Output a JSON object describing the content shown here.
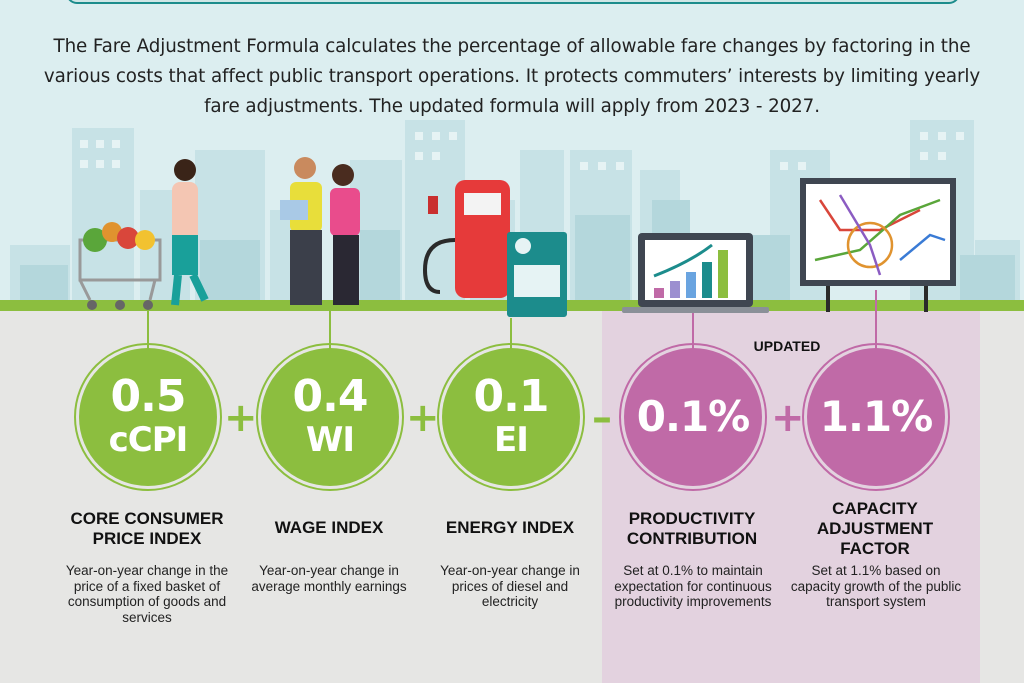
{
  "intro_text": "The Fare Adjustment Formula calculates the percentage of allowable fare changes by factoring in the various costs that affect public transport operations. It protects commuters’ interests by limiting yearly fare adjustments. The updated formula will apply from 2023 - 2027.",
  "updated_label": "UPDATED",
  "colors": {
    "green": "#8cbe3f",
    "pink": "#c06aa7",
    "updated_panel": "#e3d2df",
    "sky": "#dceef0"
  },
  "operators": [
    "+",
    "+",
    "–",
    "+"
  ],
  "components": [
    {
      "value": "0.5",
      "abbr": "cCPI",
      "title": "CORE CONSUMER PRICE INDEX",
      "description": "Year-on-year change in the price of a fixed basket of consumption of goods and services",
      "illustration": "shopping-cart-icon"
    },
    {
      "value": "0.4",
      "abbr": "WI",
      "title": "WAGE INDEX",
      "description": "Year-on-year change in average monthly earnings",
      "illustration": "workers-icon"
    },
    {
      "value": "0.1",
      "abbr": "EI",
      "title": "ENERGY INDEX",
      "description": "Year-on-year change in prices of diesel and electricity",
      "illustration": "fuel-pump-icon"
    },
    {
      "value": "0.1%",
      "title": "PRODUCTIVITY CONTRIBUTION",
      "description": "Set at 0.1% to maintain expectation for continuous productivity improvements",
      "illustration": "laptop-chart-icon"
    },
    {
      "value": "1.1%",
      "title": "CAPACITY ADJUSTMENT FACTOR",
      "description": "Set at 1.1% based on capacity growth of the public transport system",
      "illustration": "transit-map-board-icon"
    }
  ]
}
